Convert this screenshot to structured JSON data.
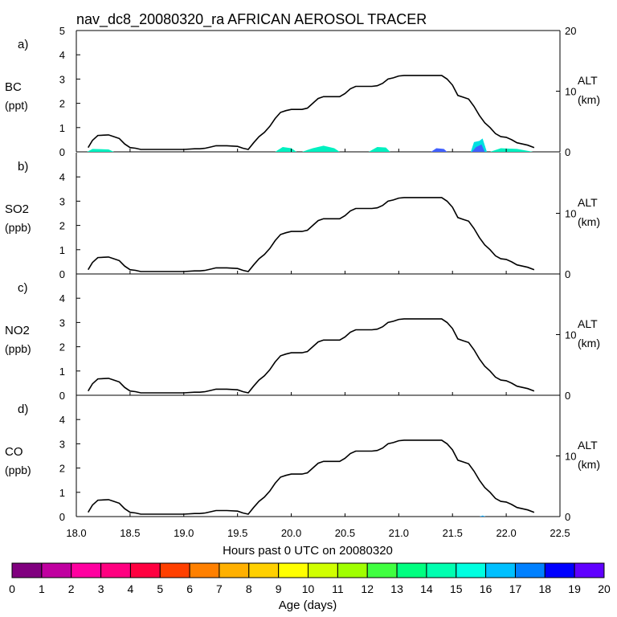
{
  "chart_data": {
    "type": "line",
    "title": "nav_dc8_20080320_ra AFRICAN AEROSOL TRACER",
    "xlabel": "Hours past 0 UTC on 20080320",
    "xlim": [
      18.0,
      22.5
    ],
    "x_ticks": [
      "18.0",
      "18.5",
      "19.0",
      "19.5",
      "20.0",
      "20.5",
      "21.0",
      "21.5",
      "22.0",
      "22.5"
    ],
    "altitude_axis": {
      "label": "ALT",
      "unit": "(km)",
      "ylim": [
        0,
        20
      ],
      "ticks": [
        "0",
        "10",
        "20"
      ]
    },
    "altitude_series": {
      "name": "Flight altitude (km)",
      "x": [
        18.11,
        18.15,
        18.2,
        18.3,
        18.35,
        18.4,
        18.45,
        18.5,
        18.55,
        18.6,
        18.8,
        19.0,
        19.1,
        19.15,
        19.2,
        19.25,
        19.3,
        19.4,
        19.5,
        19.55,
        19.6,
        19.65,
        19.7,
        19.75,
        19.8,
        19.85,
        19.9,
        19.95,
        20.0,
        20.05,
        20.1,
        20.15,
        20.2,
        20.25,
        20.3,
        20.4,
        20.45,
        20.5,
        20.55,
        20.6,
        20.7,
        20.75,
        20.8,
        20.85,
        20.9,
        20.95,
        21.0,
        21.05,
        21.1,
        21.2,
        21.3,
        21.4,
        21.45,
        21.5,
        21.55,
        21.6,
        21.65,
        21.7,
        21.75,
        21.8,
        21.85,
        21.9,
        21.95,
        22.0,
        22.05,
        22.1,
        22.15,
        22.2,
        22.26
      ],
      "values": [
        0.7,
        1.9,
        2.7,
        2.8,
        2.5,
        2.2,
        1.3,
        0.7,
        0.6,
        0.4,
        0.4,
        0.4,
        0.5,
        0.5,
        0.6,
        0.8,
        1.0,
        1.0,
        0.9,
        0.6,
        0.4,
        1.5,
        2.5,
        3.2,
        4.2,
        5.5,
        6.5,
        6.8,
        7.0,
        7.0,
        7.0,
        7.2,
        8.0,
        8.8,
        9.1,
        9.1,
        9.1,
        9.6,
        10.4,
        10.8,
        10.8,
        10.8,
        10.9,
        11.3,
        12.0,
        12.2,
        12.5,
        12.6,
        12.6,
        12.6,
        12.6,
        12.6,
        12.0,
        11.0,
        9.3,
        9.0,
        8.7,
        7.5,
        6.0,
        4.8,
        4.0,
        3.0,
        2.5,
        2.4,
        2.0,
        1.5,
        1.3,
        1.1,
        0.7
      ]
    },
    "panels": [
      {
        "letter": "a)",
        "ylabel": "BC",
        "unit": "(ppt)",
        "ylim": [
          0,
          5
        ],
        "y_ticks": [
          "0",
          "1",
          "2",
          "3",
          "4",
          "5"
        ],
        "tracer": [
          {
            "x": [
              18.1,
              18.15,
              18.3,
              18.35
            ],
            "values": [
              0,
              0.12,
              0.1,
              0
            ],
            "color": "#00f0c0"
          },
          {
            "x": [
              19.85,
              19.92,
              20.0,
              20.05
            ],
            "values": [
              0,
              0.2,
              0.15,
              0
            ],
            "color": "#00f0c0"
          },
          {
            "x": [
              20.1,
              20.2,
              20.3,
              20.4,
              20.45
            ],
            "values": [
              0,
              0.15,
              0.25,
              0.15,
              0
            ],
            "color": "#00f0c0"
          },
          {
            "x": [
              20.72,
              20.8,
              20.88,
              20.92
            ],
            "values": [
              0,
              0.2,
              0.18,
              0
            ],
            "color": "#00f0c0"
          },
          {
            "x": [
              21.3,
              21.35,
              21.42,
              21.45
            ],
            "values": [
              0,
              0.15,
              0.12,
              0
            ],
            "color": "#4060ff"
          },
          {
            "x": [
              21.67,
              21.7,
              21.75,
              21.78,
              21.82
            ],
            "values": [
              0,
              0.4,
              0.45,
              0.55,
              0
            ],
            "color": "#00e0e0"
          },
          {
            "x": [
              21.68,
              21.72,
              21.77,
              21.8
            ],
            "values": [
              0,
              0.2,
              0.3,
              0
            ],
            "color": "#4060ff"
          },
          {
            "x": [
              21.85,
              21.95,
              22.1,
              22.25
            ],
            "values": [
              0,
              0.15,
              0.12,
              0
            ],
            "color": "#00f0c0"
          }
        ]
      },
      {
        "letter": "b)",
        "ylabel": "SO2",
        "unit": "(ppb)",
        "ylim": [
          0,
          5
        ],
        "y_ticks": [
          "0",
          "1",
          "2",
          "3",
          "4"
        ],
        "tracer": []
      },
      {
        "letter": "c)",
        "ylabel": "NO2",
        "unit": "(ppb)",
        "ylim": [
          0,
          5
        ],
        "y_ticks": [
          "0",
          "1",
          "2",
          "3",
          "4"
        ],
        "tracer": []
      },
      {
        "letter": "d)",
        "ylabel": "CO",
        "unit": "(ppb)",
        "ylim": [
          0,
          5
        ],
        "y_ticks": [
          "0",
          "1",
          "2",
          "3",
          "4"
        ],
        "tracer": [
          {
            "x": [
              21.75,
              21.78,
              21.81
            ],
            "values": [
              0,
              0.04,
              0
            ],
            "color": "#00a0ff"
          }
        ]
      }
    ],
    "colorbar": {
      "label": "Age (days)",
      "ticks": [
        "0",
        "1",
        "2",
        "3",
        "4",
        "5",
        "6",
        "7",
        "8",
        "9",
        "10",
        "11",
        "12",
        "13",
        "14",
        "15",
        "16",
        "17",
        "18",
        "19",
        "20"
      ],
      "colors": [
        "#80007f",
        "#c000a0",
        "#ff00a0",
        "#ff0080",
        "#ff0040",
        "#ff4000",
        "#ff8000",
        "#ffb000",
        "#ffd000",
        "#ffff00",
        "#d0ff00",
        "#a0ff00",
        "#40ff40",
        "#00ff80",
        "#00ffb0",
        "#00ffe0",
        "#00c0ff",
        "#0080ff",
        "#0000ff",
        "#6000ff"
      ]
    }
  }
}
